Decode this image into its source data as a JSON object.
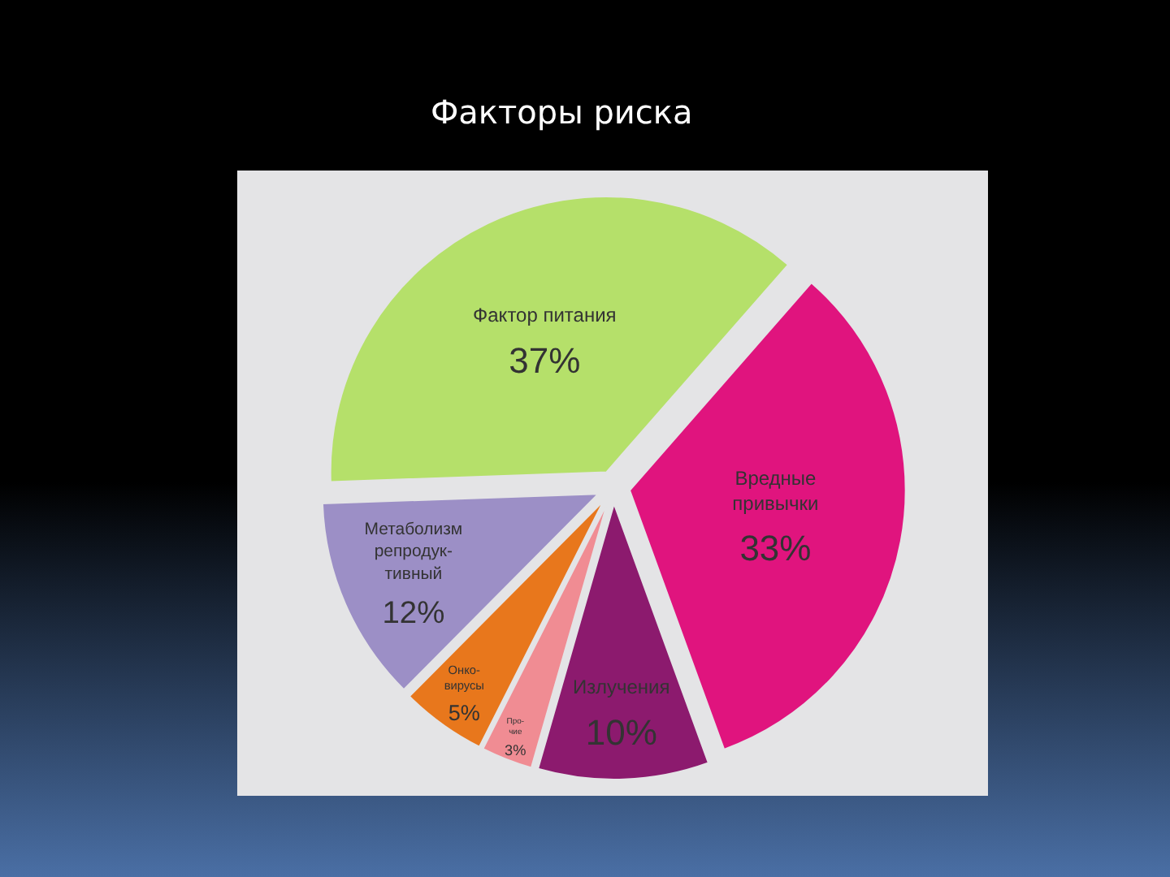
{
  "chart_data": {
    "type": "pie",
    "title": "Факторы риска",
    "categories": [
      "Фактор питания",
      "Вредные\nпривычки",
      "Излучения",
      "Про-\nчие",
      "Онко-\nвирусы",
      "Метаболизм\nрепродук-\nтивный"
    ],
    "values": [
      37,
      33,
      10,
      3,
      5,
      12
    ],
    "value_labels": [
      "37%",
      "33%",
      "10%",
      "3%",
      "5%",
      "12%"
    ],
    "colors": [
      "#b5e06a",
      "#e0147e",
      "#8c1a6e",
      "#f08c93",
      "#e8771c",
      "#9c8fc6"
    ],
    "legend": false
  }
}
